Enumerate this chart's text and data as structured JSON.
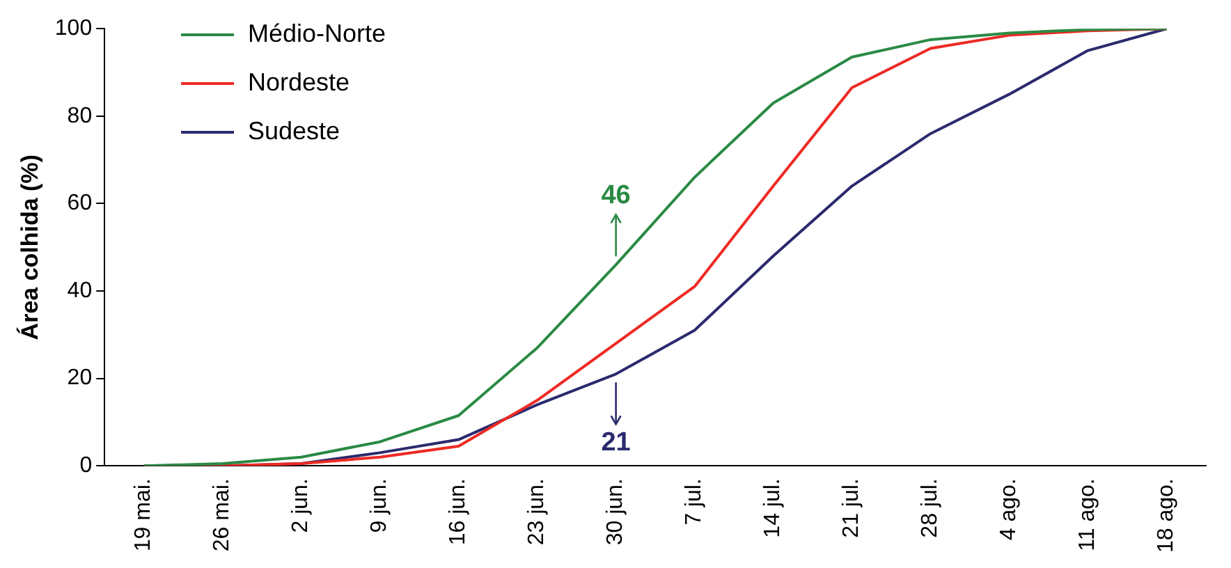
{
  "chart_data": {
    "type": "line",
    "ylabel": "Área colhida (%)",
    "categories": [
      "19 mai.",
      "26 mai.",
      "2 jun.",
      "9 jun.",
      "16 jun.",
      "23 jun.",
      "30 jun.",
      "7 jul.",
      "14 jul.",
      "21 jul.",
      "28 jul.",
      "4 ago.",
      "11 ago.",
      "18 ago."
    ],
    "series": [
      {
        "name": "Médio-Norte",
        "color": "#2a8a44",
        "values": [
          0,
          0.5,
          2,
          5.5,
          11.5,
          27,
          46,
          66,
          83,
          93.5,
          97.5,
          99,
          99.8,
          100
        ]
      },
      {
        "name": "Nordeste",
        "color": "#ee2a24",
        "values": [
          0,
          0,
          0.5,
          2,
          4.5,
          15,
          28,
          41,
          64,
          86.5,
          95.5,
          98.5,
          99.5,
          100
        ]
      },
      {
        "name": "Sudeste",
        "color": "#2b2a6e",
        "values": [
          0,
          0,
          0.5,
          3,
          6,
          14,
          21,
          31,
          48,
          64,
          76,
          85,
          95,
          100
        ]
      }
    ],
    "ylim": [
      0,
      100
    ],
    "yticks": [
      0,
      20,
      40,
      60,
      80,
      100
    ],
    "grid": false,
    "legend": "top left",
    "marker": "none",
    "line_style": "solid",
    "annotations": [
      {
        "text": "46",
        "x": "30 jun.",
        "y": 46
      },
      {
        "text": "21",
        "x": "30 jun.",
        "y": 21
      }
    ]
  }
}
